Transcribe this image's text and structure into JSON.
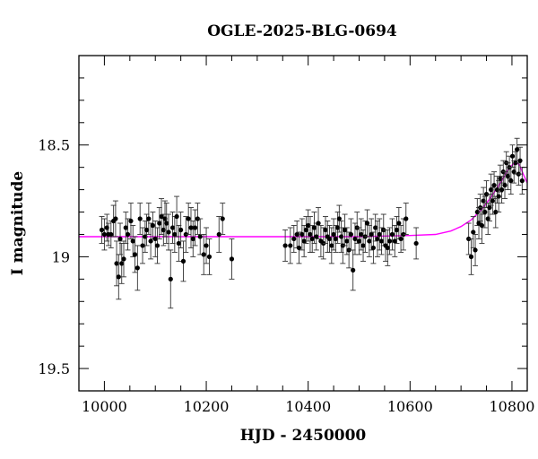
{
  "chart_data": {
    "type": "scatter",
    "title": "OGLE-2025-BLG-0694",
    "xlabel": "HJD - 2450000",
    "ylabel": "I magnitude",
    "xlim": [
      9950,
      10830
    ],
    "ylim": [
      19.6,
      18.1
    ],
    "y_inverted": true,
    "grid": false,
    "x_ticks": [
      10000,
      10200,
      10400,
      10600,
      10800
    ],
    "y_ticks": [
      18.5,
      19,
      19.5
    ],
    "x_tick_labels": [
      "10000",
      "10200",
      "10400",
      "10600",
      "10800"
    ],
    "y_tick_labels": [
      "18.5",
      "19",
      "19.5"
    ],
    "colors": {
      "points": "#000000",
      "model": "#ff00ff"
    },
    "model": {
      "name": "",
      "points": [
        [
          9950,
          18.91
        ],
        [
          10100,
          18.91
        ],
        [
          10300,
          18.91
        ],
        [
          10500,
          18.91
        ],
        [
          10600,
          18.905
        ],
        [
          10650,
          18.9
        ],
        [
          10680,
          18.885
        ],
        [
          10700,
          18.865
        ],
        [
          10720,
          18.835
        ],
        [
          10740,
          18.79
        ],
        [
          10760,
          18.73
        ],
        [
          10780,
          18.66
        ],
        [
          10795,
          18.6
        ],
        [
          10808,
          18.575
        ],
        [
          10815,
          18.59
        ],
        [
          10822,
          18.63
        ],
        [
          10830,
          18.67
        ]
      ]
    },
    "series": [
      {
        "points": [
          [
            9995,
            18.88,
            0.06
          ],
          [
            10000,
            18.9,
            0.07
          ],
          [
            10005,
            18.87,
            0.06
          ],
          [
            10008,
            18.9,
            0.05
          ],
          [
            10013,
            18.9,
            0.06
          ],
          [
            10018,
            18.84,
            0.07
          ],
          [
            10022,
            18.83,
            0.08
          ],
          [
            10024,
            19.03,
            0.1
          ],
          [
            10028,
            19.09,
            0.1
          ],
          [
            10031,
            18.92,
            0.07
          ],
          [
            10034,
            19.03,
            0.09
          ],
          [
            10038,
            19.01,
            0.08
          ],
          [
            10042,
            18.87,
            0.07
          ],
          [
            10046,
            18.9,
            0.07
          ],
          [
            10052,
            18.84,
            0.08
          ],
          [
            10056,
            18.93,
            0.07
          ],
          [
            10060,
            18.99,
            0.08
          ],
          [
            10065,
            19.05,
            0.1
          ],
          [
            10070,
            18.83,
            0.07
          ],
          [
            10075,
            18.95,
            0.08
          ],
          [
            10080,
            18.91,
            0.07
          ],
          [
            10083,
            18.88,
            0.07
          ],
          [
            10087,
            18.83,
            0.07
          ],
          [
            10091,
            18.93,
            0.08
          ],
          [
            10095,
            18.86,
            0.06
          ],
          [
            10100,
            18.92,
            0.08
          ],
          [
            10104,
            18.95,
            0.08
          ],
          [
            10108,
            18.85,
            0.07
          ],
          [
            10112,
            18.82,
            0.08
          ],
          [
            10116,
            18.88,
            0.07
          ],
          [
            10119,
            18.83,
            0.08
          ],
          [
            10122,
            18.85,
            0.09
          ],
          [
            10126,
            18.89,
            0.08
          ],
          [
            10130,
            19.1,
            0.13
          ],
          [
            10134,
            18.87,
            0.07
          ],
          [
            10138,
            18.9,
            0.08
          ],
          [
            10142,
            18.82,
            0.09
          ],
          [
            10146,
            18.94,
            0.08
          ],
          [
            10150,
            18.88,
            0.08
          ],
          [
            10155,
            19.02,
            0.09
          ],
          [
            10160,
            18.9,
            0.08
          ],
          [
            10165,
            18.83,
            0.07
          ],
          [
            10170,
            18.87,
            0.09
          ],
          [
            10174,
            18.92,
            0.08
          ],
          [
            10178,
            18.87,
            0.08
          ],
          [
            10183,
            18.83,
            0.07
          ],
          [
            10188,
            18.91,
            0.08
          ],
          [
            10195,
            18.99,
            0.09
          ],
          [
            10200,
            18.95,
            0.08
          ],
          [
            10206,
            19.0,
            0.08
          ],
          [
            10225,
            18.9,
            0.08
          ],
          [
            10232,
            18.83,
            0.07
          ],
          [
            10250,
            19.01,
            0.09
          ],
          [
            10355,
            18.95,
            0.07
          ],
          [
            10365,
            18.95,
            0.08
          ],
          [
            10372,
            18.92,
            0.06
          ],
          [
            10378,
            18.9,
            0.06
          ],
          [
            10382,
            18.96,
            0.07
          ],
          [
            10388,
            18.9,
            0.07
          ],
          [
            10392,
            18.93,
            0.07
          ],
          [
            10396,
            18.88,
            0.06
          ],
          [
            10400,
            18.86,
            0.07
          ],
          [
            10404,
            18.9,
            0.08
          ],
          [
            10408,
            18.92,
            0.06
          ],
          [
            10412,
            18.87,
            0.07
          ],
          [
            10416,
            18.91,
            0.06
          ],
          [
            10420,
            18.85,
            0.07
          ],
          [
            10425,
            18.93,
            0.07
          ],
          [
            10430,
            18.94,
            0.07
          ],
          [
            10434,
            18.88,
            0.06
          ],
          [
            10438,
            18.91,
            0.07
          ],
          [
            10442,
            18.92,
            0.06
          ],
          [
            10446,
            18.95,
            0.08
          ],
          [
            10450,
            18.9,
            0.07
          ],
          [
            10454,
            18.92,
            0.06
          ],
          [
            10458,
            18.87,
            0.07
          ],
          [
            10461,
            18.83,
            0.06
          ],
          [
            10465,
            18.91,
            0.07
          ],
          [
            10468,
            18.95,
            0.08
          ],
          [
            10472,
            18.88,
            0.07
          ],
          [
            10476,
            18.93,
            0.06
          ],
          [
            10480,
            18.97,
            0.08
          ],
          [
            10484,
            18.9,
            0.07
          ],
          [
            10488,
            19.06,
            0.09
          ],
          [
            10492,
            18.92,
            0.07
          ],
          [
            10496,
            18.87,
            0.07
          ],
          [
            10500,
            18.93,
            0.06
          ],
          [
            10504,
            18.9,
            0.07
          ],
          [
            10508,
            18.95,
            0.07
          ],
          [
            10512,
            18.91,
            0.07
          ],
          [
            10516,
            18.85,
            0.06
          ],
          [
            10520,
            18.93,
            0.07
          ],
          [
            10524,
            18.9,
            0.07
          ],
          [
            10528,
            18.96,
            0.07
          ],
          [
            10532,
            18.87,
            0.06
          ],
          [
            10536,
            18.92,
            0.08
          ],
          [
            10540,
            18.9,
            0.07
          ],
          [
            10544,
            18.93,
            0.06
          ],
          [
            10548,
            18.88,
            0.07
          ],
          [
            10552,
            18.95,
            0.07
          ],
          [
            10556,
            18.96,
            0.08
          ],
          [
            10560,
            18.93,
            0.06
          ],
          [
            10565,
            18.9,
            0.07
          ],
          [
            10570,
            18.93,
            0.07
          ],
          [
            10574,
            18.88,
            0.06
          ],
          [
            10578,
            18.85,
            0.07
          ],
          [
            10582,
            18.92,
            0.06
          ],
          [
            10587,
            18.9,
            0.07
          ],
          [
            10592,
            18.83,
            0.07
          ],
          [
            10612,
            18.94,
            0.07
          ],
          [
            10715,
            18.92,
            0.07
          ],
          [
            10720,
            19.0,
            0.08
          ],
          [
            10724,
            18.89,
            0.07
          ],
          [
            10728,
            18.97,
            0.07
          ],
          [
            10732,
            18.8,
            0.06
          ],
          [
            10735,
            18.85,
            0.07
          ],
          [
            10738,
            18.78,
            0.06
          ],
          [
            10741,
            18.86,
            0.08
          ],
          [
            10744,
            18.75,
            0.06
          ],
          [
            10747,
            18.8,
            0.07
          ],
          [
            10750,
            18.72,
            0.06
          ],
          [
            10753,
            18.83,
            0.07
          ],
          [
            10756,
            18.78,
            0.06
          ],
          [
            10759,
            18.7,
            0.07
          ],
          [
            10762,
            18.75,
            0.06
          ],
          [
            10765,
            18.68,
            0.06
          ],
          [
            10768,
            18.8,
            0.07
          ],
          [
            10771,
            18.7,
            0.06
          ],
          [
            10774,
            18.73,
            0.07
          ],
          [
            10777,
            18.65,
            0.06
          ],
          [
            10780,
            18.7,
            0.06
          ],
          [
            10783,
            18.62,
            0.05
          ],
          [
            10786,
            18.68,
            0.06
          ],
          [
            10789,
            18.58,
            0.05
          ],
          [
            10792,
            18.64,
            0.06
          ],
          [
            10795,
            18.6,
            0.05
          ],
          [
            10798,
            18.66,
            0.06
          ],
          [
            10801,
            18.55,
            0.05
          ],
          [
            10804,
            18.62,
            0.05
          ],
          [
            10807,
            18.58,
            0.05
          ],
          [
            10810,
            18.52,
            0.05
          ],
          [
            10813,
            18.63,
            0.05
          ],
          [
            10816,
            18.57,
            0.06
          ],
          [
            10820,
            18.66,
            0.06
          ]
        ]
      }
    ]
  }
}
